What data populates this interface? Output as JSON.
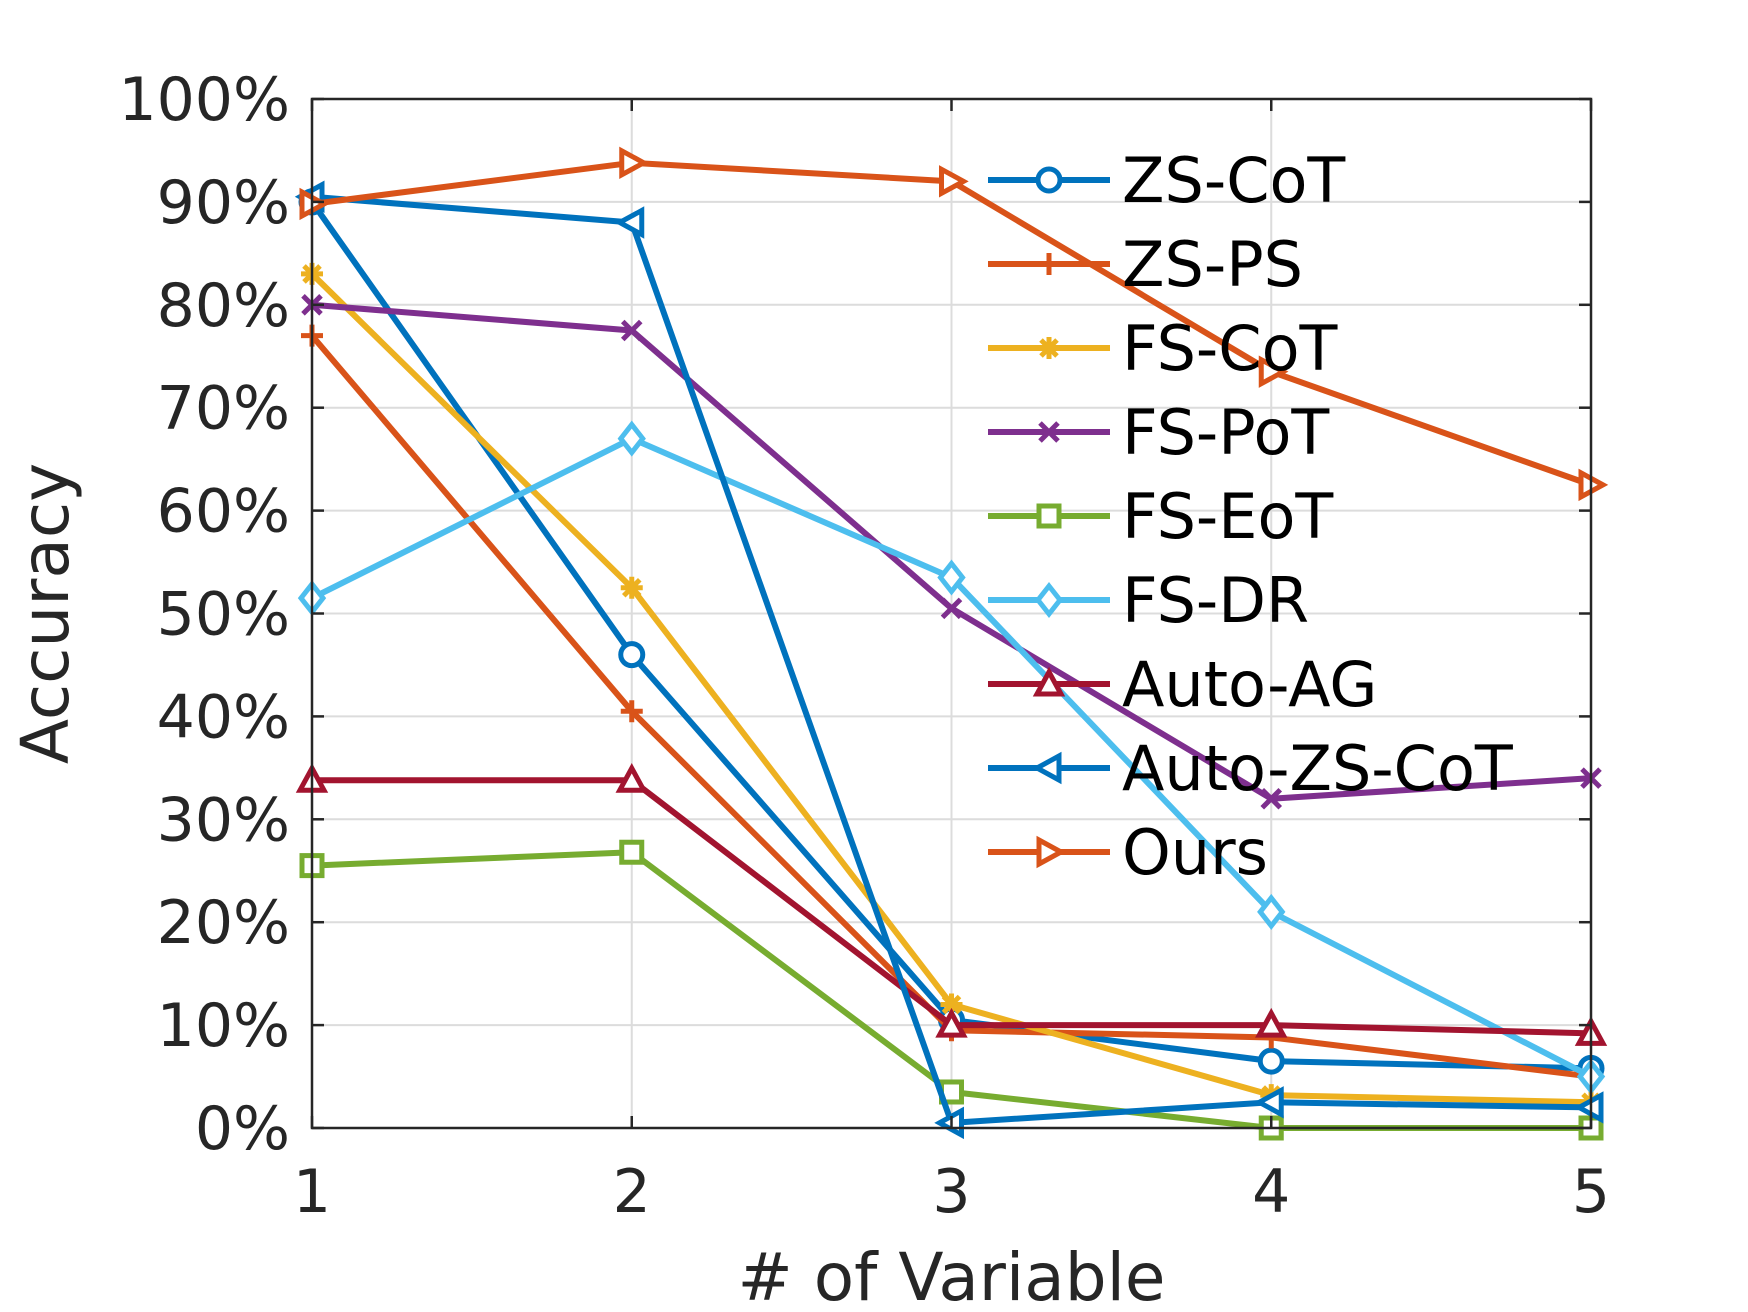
{
  "chart_data": {
    "type": "line",
    "title": "",
    "xlabel": "# of Variable",
    "ylabel": "Accuracy",
    "x": [
      1,
      2,
      3,
      4,
      5
    ],
    "xlim": [
      1,
      5
    ],
    "ylim": [
      0,
      100
    ],
    "x_tick_labels": [
      "1",
      "2",
      "3",
      "4",
      "5"
    ],
    "y_tick_labels": [
      "0%",
      "10%",
      "20%",
      "30%",
      "40%",
      "50%",
      "60%",
      "70%",
      "80%",
      "90%",
      "100%"
    ],
    "grid": true,
    "legend_position": "top-right",
    "series": [
      {
        "name": "ZS-CoT",
        "marker": "circle",
        "color": "#0072BD",
        "values": [
          90.0,
          46.0,
          10.5,
          6.5,
          5.8
        ]
      },
      {
        "name": "ZS-PS",
        "marker": "plus",
        "color": "#D95319",
        "values": [
          77.0,
          40.5,
          9.5,
          8.8,
          5.0
        ]
      },
      {
        "name": "FS-CoT",
        "marker": "star",
        "color": "#EDB120",
        "values": [
          83.0,
          52.5,
          12.0,
          3.2,
          2.5
        ]
      },
      {
        "name": "FS-PoT",
        "marker": "x",
        "color": "#7E2F8E",
        "values": [
          80.0,
          77.5,
          50.5,
          32.0,
          34.0
        ]
      },
      {
        "name": "FS-EoT",
        "marker": "square",
        "color": "#77AC30",
        "values": [
          25.5,
          26.8,
          3.5,
          0.0,
          0.0
        ]
      },
      {
        "name": "FS-DR",
        "marker": "diamond",
        "color": "#4DBEEE",
        "values": [
          51.5,
          67.0,
          53.5,
          21.0,
          5.0
        ]
      },
      {
        "name": "Auto-AG",
        "marker": "triangle-up",
        "color": "#A2142F",
        "values": [
          33.8,
          33.8,
          10.0,
          10.0,
          9.2
        ]
      },
      {
        "name": "Auto-ZS-CoT",
        "marker": "triangle-left",
        "color": "#0072BD",
        "values": [
          90.5,
          88.0,
          0.5,
          2.5,
          2.0
        ]
      },
      {
        "name": "Ours",
        "marker": "triangle-right",
        "color": "#D95319",
        "values": [
          89.8,
          93.8,
          92.0,
          73.5,
          62.5
        ]
      }
    ]
  }
}
